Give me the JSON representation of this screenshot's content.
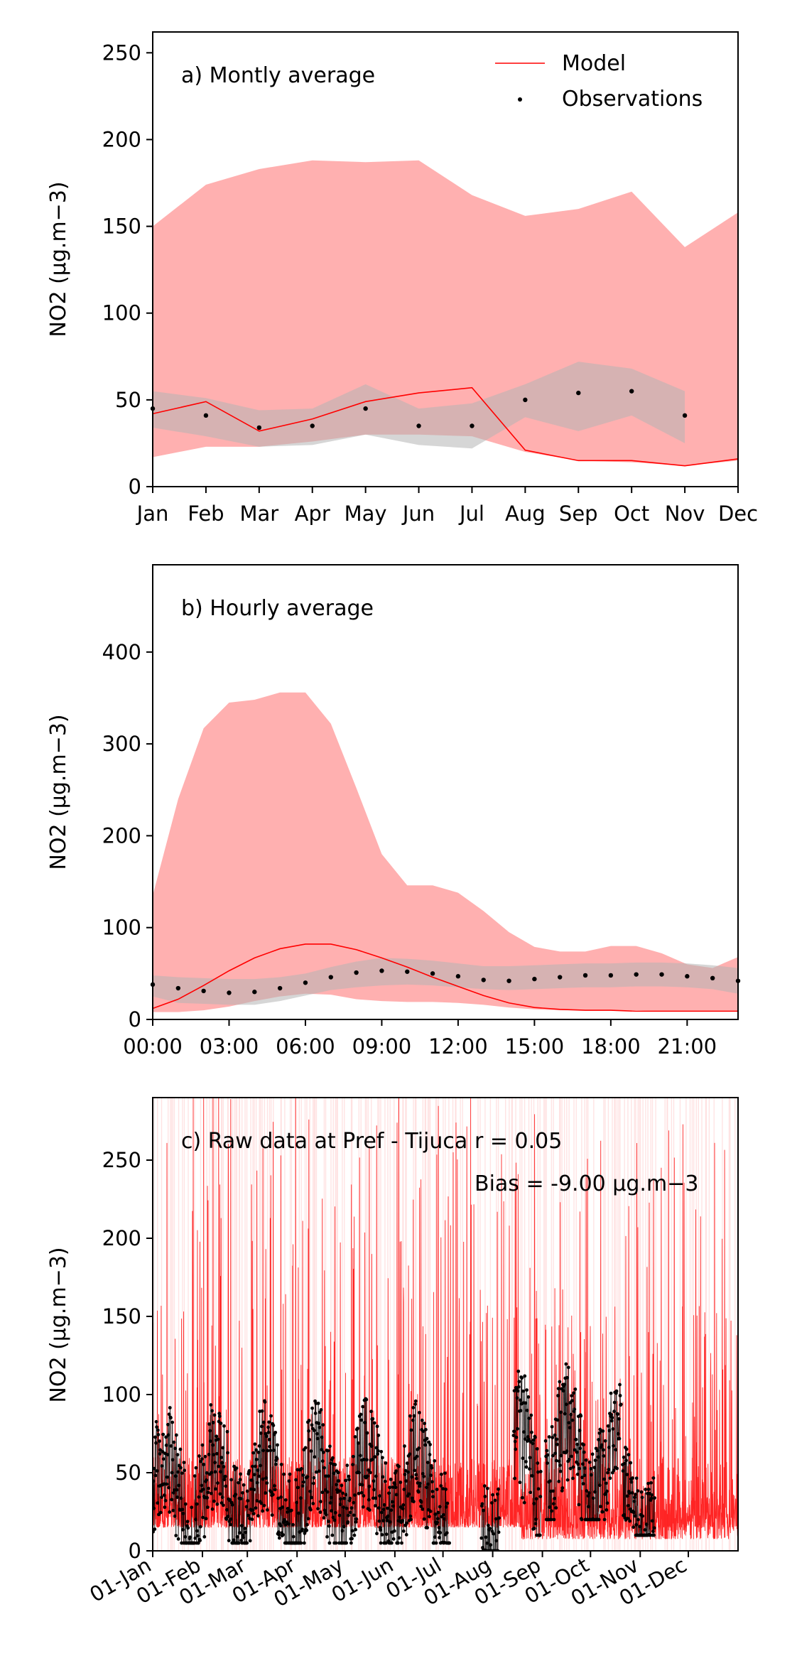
{
  "chart_data": [
    {
      "type": "line",
      "panel": "a",
      "annotation": "a) Montly average",
      "ylabel": "NO2 (µg.m−3)",
      "ylim": [
        0,
        262
      ],
      "yticks": [
        0,
        50,
        100,
        150,
        200,
        250
      ],
      "categories": [
        "Jan",
        "Feb",
        "Mar",
        "Apr",
        "May",
        "Jun",
        "Jul",
        "Aug",
        "Sep",
        "Oct",
        "Nov",
        "Dec"
      ],
      "legend": {
        "position": "top-right",
        "entries": [
          "Model",
          "Observations"
        ]
      },
      "colors": {
        "model_line": "#ff0000",
        "model_band": "#ffb0b0",
        "obs_band": "#b4b4b4",
        "obs_points": "#000000"
      },
      "series": [
        {
          "name": "Model",
          "kind": "line",
          "values": [
            42,
            49,
            32,
            39,
            49,
            54,
            57,
            21,
            15,
            15,
            12,
            16
          ]
        },
        {
          "name": "Observations",
          "kind": "points",
          "values": [
            45,
            41,
            34,
            35,
            45,
            35,
            35,
            50,
            54,
            55,
            41,
            null
          ]
        }
      ],
      "model_range": {
        "lower": [
          17,
          23,
          23,
          26,
          30,
          30,
          29,
          20,
          15,
          14,
          12,
          15
        ],
        "upper": [
          150,
          174,
          183,
          188,
          187,
          188,
          168,
          156,
          160,
          170,
          138,
          158
        ]
      },
      "obs_range": {
        "lower": [
          34,
          29,
          23,
          24,
          30,
          24,
          22,
          40,
          32,
          41,
          25,
          null
        ],
        "upper": [
          55,
          51,
          44,
          45,
          59,
          45,
          48,
          59,
          72,
          68,
          55,
          null
        ]
      }
    },
    {
      "type": "line",
      "panel": "b",
      "annotation": "b) Hourly average",
      "ylabel": "NO2 (µg.m−3)",
      "ylim": [
        0,
        495
      ],
      "yticks": [
        0,
        100,
        200,
        300,
        400
      ],
      "xlim": [
        0,
        23
      ],
      "xticks": [
        0,
        3,
        6,
        9,
        12,
        15,
        18,
        21
      ],
      "xtick_labels": [
        "00:00",
        "03:00",
        "06:00",
        "09:00",
        "12:00",
        "15:00",
        "18:00",
        "21:00"
      ],
      "colors": {
        "model_line": "#ff0000",
        "model_band": "#ffb0b0",
        "obs_band": "#b4b4b4",
        "obs_points": "#000000"
      },
      "series": [
        {
          "name": "Model",
          "kind": "line",
          "x": [
            0,
            1,
            2,
            3,
            4,
            5,
            6,
            7,
            8,
            9,
            10,
            11,
            12,
            13,
            14,
            15,
            16,
            17,
            18,
            19,
            20,
            21,
            22,
            23
          ],
          "values": [
            12,
            22,
            37,
            53,
            67,
            77,
            82,
            82,
            76,
            67,
            57,
            46,
            36,
            26,
            18,
            13,
            11,
            10,
            10,
            9,
            9,
            9,
            9,
            9
          ]
        },
        {
          "name": "Observations",
          "kind": "points",
          "x": [
            0,
            1,
            2,
            3,
            4,
            5,
            6,
            7,
            8,
            9,
            10,
            11,
            12,
            13,
            14,
            15,
            16,
            17,
            18,
            19,
            20,
            21,
            22,
            23
          ],
          "values": [
            38,
            34,
            31,
            29,
            30,
            34,
            40,
            46,
            51,
            53,
            52,
            50,
            47,
            43,
            42,
            44,
            46,
            48,
            48,
            49,
            49,
            47,
            45,
            42
          ]
        }
      ],
      "model_range": {
        "lower": [
          8,
          8,
          10,
          14,
          20,
          25,
          28,
          27,
          22,
          20,
          19,
          19,
          18,
          16,
          13,
          11,
          10,
          10,
          10,
          10,
          9,
          9,
          9,
          9
        ],
        "upper": [
          135,
          240,
          317,
          345,
          348,
          356,
          356,
          322,
          252,
          180,
          146,
          146,
          138,
          118,
          95,
          79,
          74,
          74,
          80,
          80,
          72,
          60,
          56,
          68
        ]
      },
      "obs_range": {
        "lower": [
          25,
          18,
          17,
          16,
          16,
          20,
          26,
          32,
          35,
          37,
          38,
          37,
          35,
          33,
          32,
          33,
          34,
          35,
          35,
          36,
          36,
          35,
          33,
          28
        ],
        "upper": [
          48,
          46,
          45,
          44,
          44,
          46,
          50,
          57,
          63,
          67,
          66,
          64,
          61,
          58,
          58,
          59,
          60,
          61,
          61,
          62,
          62,
          61,
          59,
          56
        ]
      }
    },
    {
      "type": "line",
      "panel": "c",
      "annotation": "c) Raw data at Pref - Tijuca",
      "stat_r": "r = 0.05",
      "stat_bias": "Bias = -9.00 µg.m−3",
      "ylabel": "NO2 (µg.m−3)",
      "ylim": [
        0,
        290
      ],
      "yticks": [
        0,
        50,
        100,
        150,
        200,
        250
      ],
      "xlim": [
        "01-Jan",
        "31-Dec"
      ],
      "xtick_labels": [
        "01-Jan",
        "01-Feb",
        "01-Mar",
        "01-Apr",
        "01-May",
        "01-Jun",
        "01-Jul",
        "01-Aug",
        "01-Sep",
        "01-Oct",
        "01-Nov",
        "01-Dec"
      ],
      "colors": {
        "model_line": "#ff0000",
        "model_band": "#ffd8d8",
        "obs_points": "#000000"
      },
      "series": [
        {
          "name": "Model",
          "kind": "line",
          "summary": "hourly model values, mostly 0–150 with frequent spikes beyond 290"
        },
        {
          "name": "Observations",
          "kind": "points",
          "segments": [
            {
              "from": "01-Jan",
              "to": "05-Jul",
              "range": [
                5,
                100
              ]
            },
            {
              "from": "25-Jul",
              "to": "05-Aug",
              "range": [
                0,
                80
              ]
            },
            {
              "from": "14-Aug",
              "to": "31-Aug",
              "range": [
                10,
                125
              ]
            },
            {
              "from": "03-Sep",
              "to": "20-Oct",
              "range": [
                20,
                125
              ]
            },
            {
              "from": "21-Oct",
              "to": "10-Nov",
              "range": [
                10,
                75
              ]
            }
          ]
        }
      ]
    }
  ]
}
